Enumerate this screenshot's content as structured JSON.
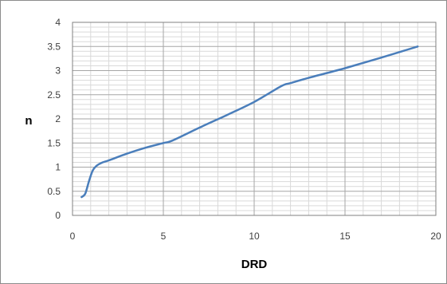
{
  "chart_data": {
    "type": "line",
    "title": "",
    "xlabel": "DRD",
    "ylabel": "n",
    "xlim": [
      0,
      20
    ],
    "ylim": [
      0,
      4
    ],
    "x_ticks": [
      0,
      5,
      10,
      15,
      20
    ],
    "x_tick_labels": [
      "0",
      "5",
      "10",
      "15",
      "20"
    ],
    "y_ticks": [
      0,
      0.5,
      1,
      1.5,
      2,
      2.5,
      3,
      3.5,
      4
    ],
    "y_tick_labels": [
      "0",
      "0.5",
      "1",
      "1.5",
      "2",
      "2.5",
      "3",
      "3.5",
      "4"
    ],
    "grid": true,
    "legend": "none",
    "series": [
      {
        "color": "#4a7ebb",
        "points": [
          [
            0.5,
            0.38
          ],
          [
            0.7,
            0.45
          ],
          [
            0.9,
            0.7
          ],
          [
            1.1,
            0.92
          ],
          [
            1.3,
            1.02
          ],
          [
            1.6,
            1.09
          ],
          [
            2.0,
            1.14
          ],
          [
            3.0,
            1.28
          ],
          [
            4.0,
            1.4
          ],
          [
            5.0,
            1.5
          ],
          [
            5.5,
            1.55
          ],
          [
            7.0,
            1.82
          ],
          [
            8.5,
            2.08
          ],
          [
            10.0,
            2.35
          ],
          [
            11.5,
            2.68
          ],
          [
            12.0,
            2.74
          ],
          [
            13.0,
            2.85
          ],
          [
            15.0,
            3.05
          ],
          [
            17.0,
            3.27
          ],
          [
            19.0,
            3.5
          ]
        ]
      }
    ]
  }
}
